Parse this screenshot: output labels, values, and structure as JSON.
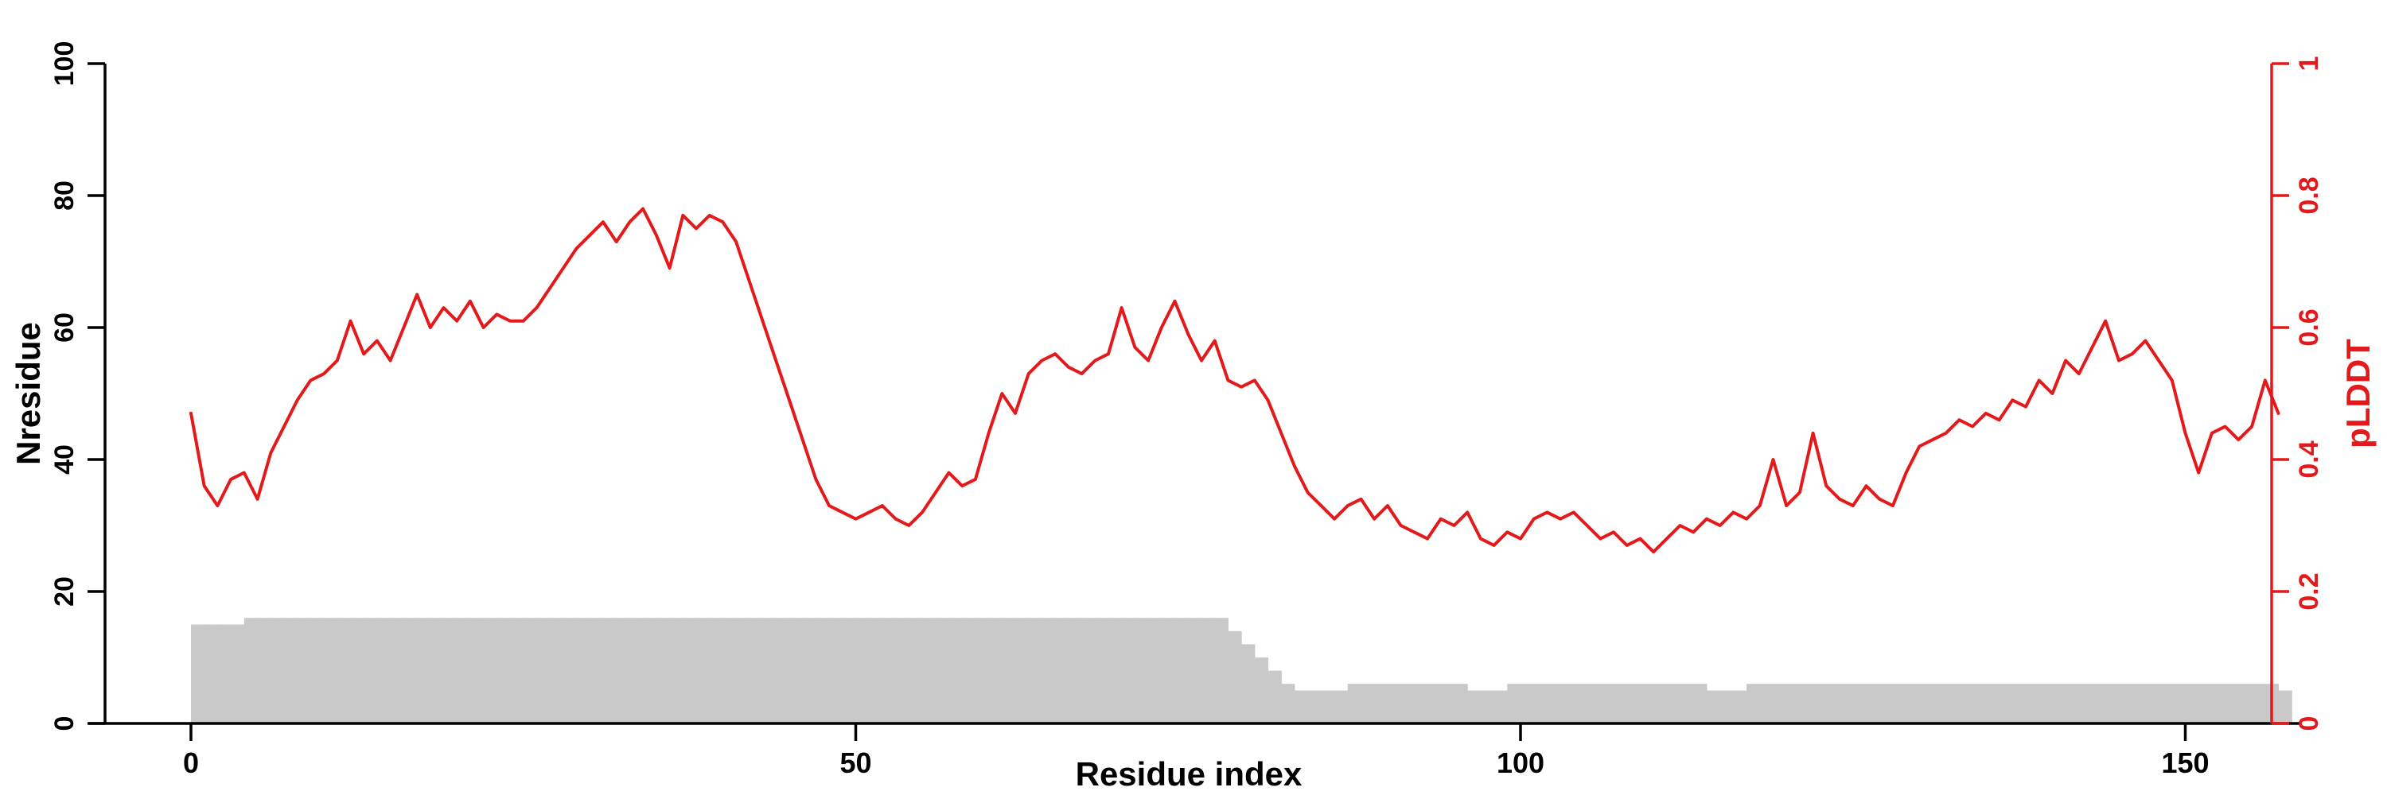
{
  "colors": {
    "background": "#ffffff",
    "bar_fill": "#c9c9c9",
    "line_red": "#e31a1c",
    "axis_black": "#000000"
  },
  "chart_data": {
    "type": "line",
    "title": "",
    "xlabel": "Residue index",
    "ylabel": "Nresidue",
    "ylabel_right": "pLDDT",
    "x_start": 1,
    "x_step": 1,
    "axes": {
      "x": {
        "label": "Residue index",
        "range": [
          0,
          158
        ],
        "ticks": [
          0,
          50,
          100,
          150
        ],
        "color": "#000000"
      },
      "left": {
        "label": "Nresidue",
        "range": [
          0,
          100
        ],
        "ticks": [
          0,
          20,
          40,
          60,
          80,
          100
        ],
        "color": "#000000"
      },
      "right": {
        "label": "pLDDT",
        "range": [
          0,
          1
        ],
        "ticks": [
          0,
          0.2,
          0.4,
          0.6,
          0.8,
          1
        ],
        "color": "#e31a1c"
      }
    },
    "legend": "none",
    "grid": false,
    "series": [
      {
        "name": "Nresidue",
        "type": "bar",
        "axis": "left",
        "color": "#c9c9c9",
        "values": [
          15,
          15,
          15,
          15,
          16,
          16,
          16,
          16,
          16,
          16,
          16,
          16,
          16,
          16,
          16,
          16,
          16,
          16,
          16,
          16,
          16,
          16,
          16,
          16,
          16,
          16,
          16,
          16,
          16,
          16,
          16,
          16,
          16,
          16,
          16,
          16,
          16,
          16,
          16,
          16,
          16,
          16,
          16,
          16,
          16,
          16,
          16,
          16,
          16,
          16,
          16,
          16,
          16,
          16,
          16,
          16,
          16,
          16,
          16,
          16,
          16,
          16,
          16,
          16,
          16,
          16,
          16,
          16,
          16,
          16,
          16,
          16,
          16,
          16,
          16,
          16,
          16,
          16,
          14,
          12,
          10,
          8,
          6,
          5,
          5,
          5,
          5,
          6,
          6,
          6,
          6,
          6,
          6,
          6,
          6,
          6,
          5,
          5,
          5,
          6,
          6,
          6,
          6,
          6,
          6,
          6,
          6,
          6,
          6,
          6,
          6,
          6,
          6,
          6,
          5,
          5,
          5,
          6,
          6,
          6,
          6,
          6,
          6,
          6,
          6,
          6,
          6,
          6,
          6,
          6,
          6,
          6,
          6,
          6,
          6,
          6,
          6,
          6,
          6,
          6,
          6,
          6,
          6,
          6,
          6,
          6,
          6,
          6,
          6,
          6,
          6,
          6,
          6,
          6,
          6,
          6,
          6,
          5
        ]
      },
      {
        "name": "pLDDT",
        "type": "line",
        "axis": "right",
        "color": "#e31a1c",
        "values": [
          0.47,
          0.36,
          0.33,
          0.37,
          0.38,
          0.34,
          0.41,
          0.45,
          0.49,
          0.52,
          0.53,
          0.55,
          0.61,
          0.56,
          0.58,
          0.55,
          0.6,
          0.65,
          0.6,
          0.63,
          0.61,
          0.64,
          0.6,
          0.62,
          0.61,
          0.61,
          0.63,
          0.66,
          0.69,
          0.72,
          0.74,
          0.76,
          0.73,
          0.76,
          0.78,
          0.74,
          0.69,
          0.77,
          0.75,
          0.77,
          0.76,
          0.73,
          0.67,
          0.61,
          0.55,
          0.49,
          0.43,
          0.37,
          0.33,
          0.32,
          0.31,
          0.32,
          0.33,
          0.31,
          0.3,
          0.32,
          0.35,
          0.38,
          0.36,
          0.37,
          0.44,
          0.5,
          0.47,
          0.53,
          0.55,
          0.56,
          0.54,
          0.53,
          0.55,
          0.56,
          0.63,
          0.57,
          0.55,
          0.6,
          0.64,
          0.59,
          0.55,
          0.58,
          0.52,
          0.51,
          0.52,
          0.49,
          0.44,
          0.39,
          0.35,
          0.33,
          0.31,
          0.33,
          0.34,
          0.31,
          0.33,
          0.3,
          0.29,
          0.28,
          0.31,
          0.3,
          0.32,
          0.28,
          0.27,
          0.29,
          0.28,
          0.31,
          0.32,
          0.31,
          0.32,
          0.3,
          0.28,
          0.29,
          0.27,
          0.28,
          0.26,
          0.28,
          0.3,
          0.29,
          0.31,
          0.3,
          0.32,
          0.31,
          0.33,
          0.4,
          0.33,
          0.35,
          0.44,
          0.36,
          0.34,
          0.33,
          0.36,
          0.34,
          0.33,
          0.38,
          0.42,
          0.43,
          0.44,
          0.46,
          0.45,
          0.47,
          0.46,
          0.49,
          0.48,
          0.52,
          0.5,
          0.55,
          0.53,
          0.57,
          0.61,
          0.55,
          0.56,
          0.58,
          0.55,
          0.52,
          0.44,
          0.38,
          0.44,
          0.45,
          0.43,
          0.45,
          0.52,
          0.47
        ]
      }
    ]
  }
}
